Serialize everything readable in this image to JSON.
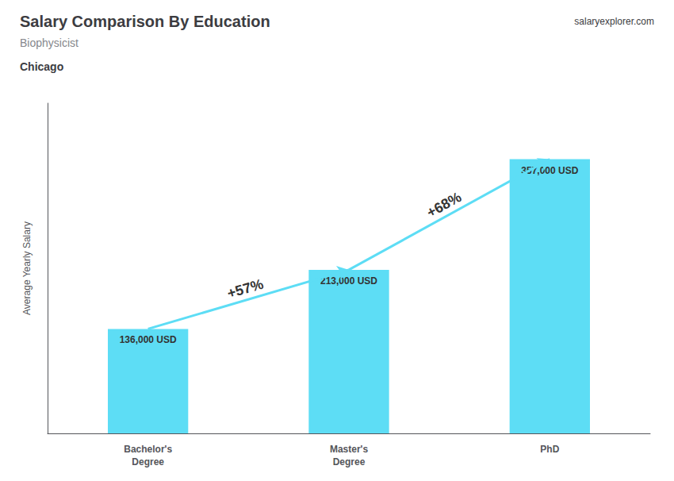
{
  "chart_data": {
    "type": "bar",
    "title": "Salary Comparison By Education",
    "subtitle": "Biophysicist",
    "city": "Chicago",
    "source": "salaryexplorer.com",
    "ylabel": "Average Yearly Salary",
    "categories": [
      "Bachelor's\nDegree",
      "Master's\nDegree",
      "PhD"
    ],
    "values": [
      136000,
      213000,
      357000
    ],
    "value_labels": [
      "136,000 USD",
      "213,000 USD",
      "357,000 USD"
    ],
    "data_labels": true,
    "color": "#5DDDF5",
    "ylim": [
      0,
      430000
    ],
    "tick_labels": "x",
    "grid": false,
    "annotations": [
      "+57%",
      "+68%"
    ]
  }
}
